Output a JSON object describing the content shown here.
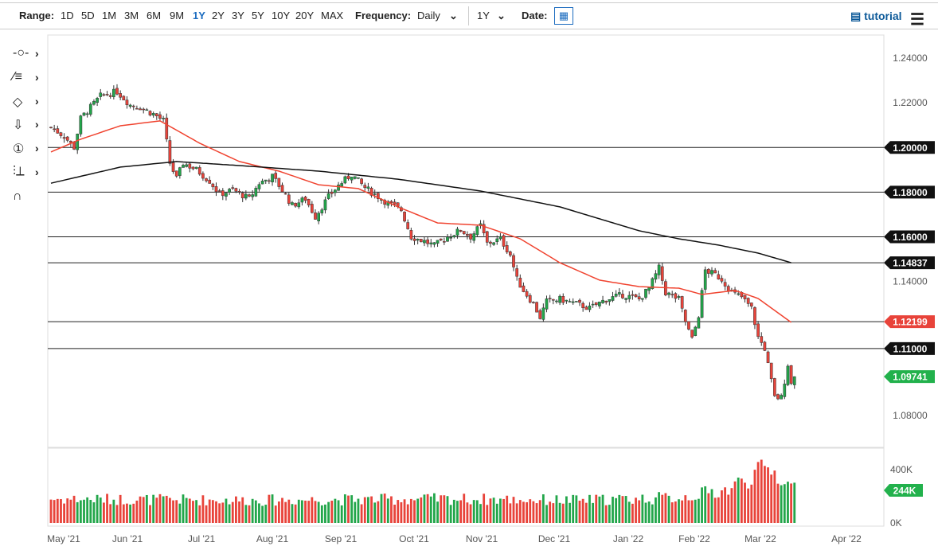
{
  "toolbar": {
    "range_label": "Range:",
    "ranges": [
      "1D",
      "5D",
      "1M",
      "3M",
      "6M",
      "9M",
      "1Y",
      "2Y",
      "3Y",
      "5Y",
      "10Y",
      "20Y",
      "MAX"
    ],
    "active_range": "1Y",
    "frequency_label": "Frequency:",
    "frequency_value": "Daily",
    "period_value": "1Y",
    "date_label": "Date:",
    "tutorial_label": "tutorial",
    "calendar_icon": "calendar-icon",
    "menu_icon": "hamburger-icon"
  },
  "left_tools": [
    "line-tool-icon",
    "fib-tool-icon",
    "shape-tool-icon",
    "arrow-tool-icon",
    "annotation-tool-icon",
    "measure-tool-icon",
    "magnet-icon"
  ],
  "colors": {
    "up": "#22a64a",
    "down": "#e8433a",
    "ma50": "#f0432f",
    "ma200": "#111111",
    "current_label": "#22b14c"
  },
  "chart_data": {
    "type": "candlestick",
    "x_tick_labels": [
      "May '21",
      "Jun '21",
      "Jul '21",
      "Aug '21",
      "Sep '21",
      "Oct '21",
      "Nov '21",
      "Dec '21",
      "Jan '22",
      "Feb '22",
      "Mar '22",
      "Apr '22"
    ],
    "y_tick_labels": [
      "1.24000",
      "1.22000",
      "1.14000",
      "1.08000"
    ],
    "ylim": [
      1.07,
      1.245
    ],
    "trading_days": 226,
    "close_anchors": [
      [
        0,
        1.209
      ],
      [
        4,
        1.205
      ],
      [
        7,
        1.2
      ],
      [
        9,
        1.213
      ],
      [
        12,
        1.218
      ],
      [
        15,
        1.223
      ],
      [
        20,
        1.225
      ],
      [
        24,
        1.219
      ],
      [
        27,
        1.218
      ],
      [
        31,
        1.215
      ],
      [
        34,
        1.212
      ],
      [
        36,
        1.193
      ],
      [
        38,
        1.186
      ],
      [
        40,
        1.193
      ],
      [
        44,
        1.19
      ],
      [
        48,
        1.185
      ],
      [
        51,
        1.179
      ],
      [
        55,
        1.181
      ],
      [
        60,
        1.177
      ],
      [
        63,
        1.184
      ],
      [
        67,
        1.187
      ],
      [
        69,
        1.183
      ],
      [
        73,
        1.174
      ],
      [
        77,
        1.177
      ],
      [
        80,
        1.169
      ],
      [
        84,
        1.178
      ],
      [
        87,
        1.183
      ],
      [
        91,
        1.188
      ],
      [
        95,
        1.182
      ],
      [
        98,
        1.179
      ],
      [
        102,
        1.175
      ],
      [
        106,
        1.172
      ],
      [
        109,
        1.16
      ],
      [
        113,
        1.158
      ],
      [
        116,
        1.156
      ],
      [
        120,
        1.16
      ],
      [
        124,
        1.163
      ],
      [
        127,
        1.16
      ],
      [
        130,
        1.165
      ],
      [
        132,
        1.157
      ],
      [
        136,
        1.159
      ],
      [
        139,
        1.152
      ],
      [
        141,
        1.141
      ],
      [
        143,
        1.136
      ],
      [
        146,
        1.13
      ],
      [
        148,
        1.124
      ],
      [
        150,
        1.131
      ],
      [
        154,
        1.132
      ],
      [
        159,
        1.13
      ],
      [
        163,
        1.128
      ],
      [
        168,
        1.132
      ],
      [
        173,
        1.134
      ],
      [
        178,
        1.132
      ],
      [
        181,
        1.137
      ],
      [
        184,
        1.146
      ],
      [
        186,
        1.135
      ],
      [
        190,
        1.132
      ],
      [
        192,
        1.122
      ],
      [
        194,
        1.114
      ],
      [
        196,
        1.125
      ],
      [
        198,
        1.145
      ],
      [
        201,
        1.143
      ],
      [
        203,
        1.141
      ],
      [
        206,
        1.135
      ],
      [
        209,
        1.133
      ],
      [
        212,
        1.128
      ],
      [
        214,
        1.115
      ],
      [
        216,
        1.11
      ],
      [
        219,
        1.088
      ],
      [
        221,
        1.088
      ],
      [
        223,
        1.103
      ],
      [
        224,
        1.094
      ],
      [
        225,
        1.0974
      ]
    ],
    "ma50_anchors": [
      [
        0,
        1.198
      ],
      [
        9,
        1.2037
      ],
      [
        21,
        1.2097
      ],
      [
        33,
        1.2119
      ],
      [
        45,
        1.2019
      ],
      [
        57,
        1.1937
      ],
      [
        69,
        1.1894
      ],
      [
        81,
        1.1833
      ],
      [
        93,
        1.1816
      ],
      [
        105,
        1.1734
      ],
      [
        117,
        1.1662
      ],
      [
        130,
        1.1652
      ],
      [
        142,
        1.1591
      ],
      [
        154,
        1.1484
      ],
      [
        166,
        1.1406
      ],
      [
        178,
        1.1377
      ],
      [
        190,
        1.137
      ],
      [
        197,
        1.1342
      ],
      [
        207,
        1.136
      ],
      [
        214,
        1.1324
      ],
      [
        224,
        1.1217
      ]
    ],
    "ma200_anchors": [
      [
        0,
        1.184
      ],
      [
        21,
        1.1912
      ],
      [
        38,
        1.1937
      ],
      [
        57,
        1.1919
      ],
      [
        81,
        1.1894
      ],
      [
        105,
        1.1858
      ],
      [
        130,
        1.1805
      ],
      [
        154,
        1.1734
      ],
      [
        178,
        1.1627
      ],
      [
        190,
        1.1591
      ],
      [
        202,
        1.1563
      ],
      [
        214,
        1.1527
      ],
      [
        224,
        1.1484
      ]
    ],
    "levels": [
      {
        "value": 1.2,
        "label": "1.20000"
      },
      {
        "value": 1.18,
        "label": "1.18000"
      },
      {
        "value": 1.16,
        "label": "1.16000"
      },
      {
        "value": 1.14837,
        "label": "1.14837"
      },
      {
        "value": 1.12199,
        "label": "1.12199",
        "color": "#e8433a"
      },
      {
        "value": 1.11,
        "label": "1.11000"
      }
    ],
    "current_price": {
      "value": 1.09741,
      "label": "1.09741"
    },
    "volume": {
      "y_tick_labels": [
        "400K",
        "0K"
      ],
      "ymax": 500,
      "current": 244,
      "current_label": "244K",
      "anchors": [
        [
          0,
          180
        ],
        [
          60,
          170
        ],
        [
          120,
          180
        ],
        [
          160,
          170
        ],
        [
          190,
          190
        ],
        [
          205,
          250
        ],
        [
          213,
          370
        ],
        [
          218,
          400
        ],
        [
          225,
          244
        ]
      ]
    }
  }
}
